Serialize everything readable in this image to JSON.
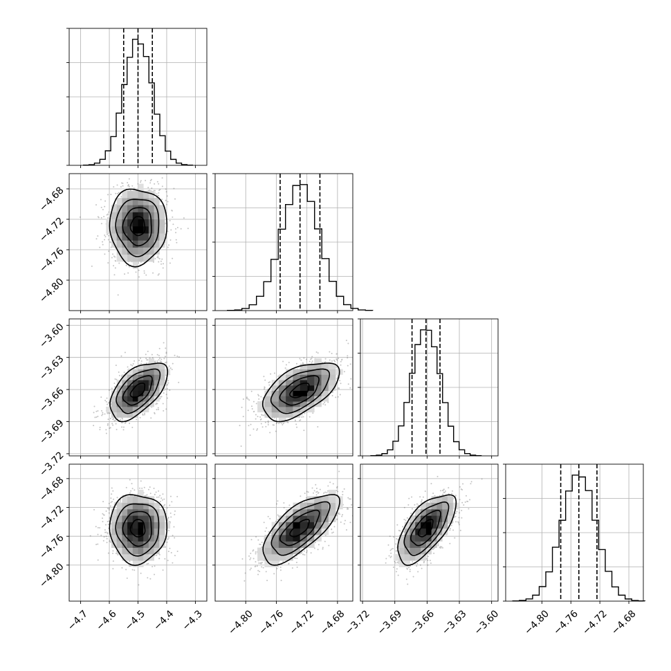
{
  "chart_data": {
    "type": "corner",
    "grid": true,
    "parameters": [
      {
        "mean": -4.5,
        "sigma": 0.05,
        "quantiles": [
          -4.55,
          -4.5,
          -4.45
        ],
        "range": [
          -4.74,
          -4.26
        ],
        "ticks": [
          -4.7,
          -4.6,
          -4.5,
          -4.4,
          -4.3
        ],
        "tick_labels": [
          "−4.7",
          "−4.6",
          "−4.5",
          "−4.4",
          "−4.3"
        ]
      },
      {
        "mean": -4.729,
        "sigma": 0.025,
        "quantiles": [
          -4.755,
          -4.729,
          -4.703
        ],
        "range": [
          -4.84,
          -4.66
        ],
        "ticks": [
          -4.8,
          -4.76,
          -4.72,
          -4.68
        ],
        "tick_labels": [
          "−4.80",
          "−4.76",
          "−4.72",
          "−4.68"
        ]
      },
      {
        "mean": -3.661,
        "sigma": 0.0135,
        "quantiles": [
          -3.674,
          -3.661,
          -3.648
        ],
        "range": [
          -3.722,
          -3.594
        ],
        "ticks": [
          -3.72,
          -3.69,
          -3.66,
          -3.63,
          -3.6
        ],
        "tick_labels": [
          "−3.72",
          "−3.69",
          "−3.66",
          "−3.63",
          "−3.60"
        ]
      },
      {
        "mean": -4.749,
        "sigma": 0.024,
        "quantiles": [
          -4.774,
          -4.749,
          -4.724
        ],
        "range": [
          -4.85,
          -4.66
        ],
        "ticks": [
          -4.8,
          -4.76,
          -4.72,
          -4.68
        ],
        "tick_labels": [
          "−4.80",
          "−4.76",
          "−4.72",
          "−4.68"
        ]
      }
    ],
    "correlations": {
      "1-0": 0.0,
      "2-0": 0.55,
      "2-1": 0.55,
      "3-0": 0.0,
      "3-1": 0.7,
      "3-2": 0.65
    },
    "contour_levels_sigma": [
      0.5,
      1.0,
      1.5,
      2.0
    ],
    "histogram_bins": 20,
    "colors": {
      "points": "#555555",
      "density": "#000000",
      "lines": "#000000",
      "grid": "#b0b0b0"
    }
  }
}
